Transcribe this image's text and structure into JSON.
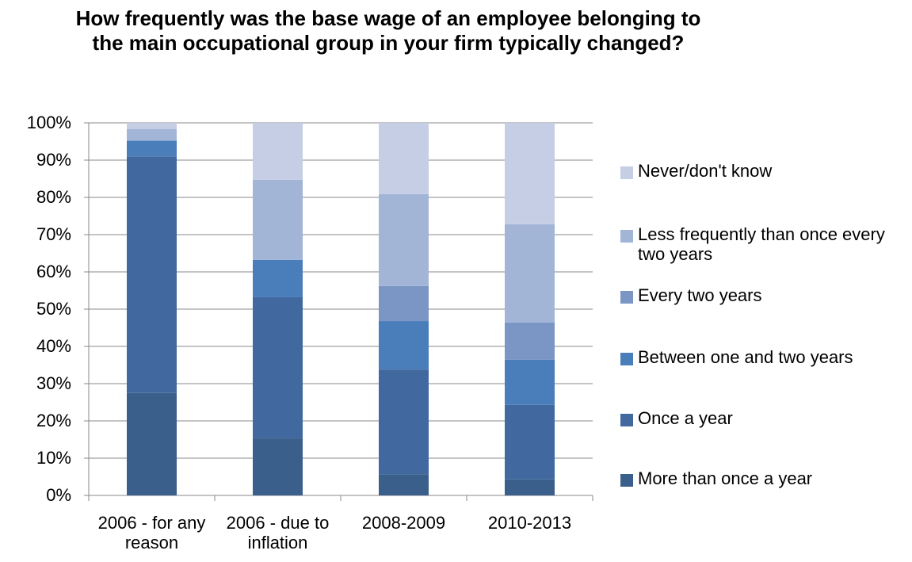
{
  "chart_data": {
    "type": "stacked_bar",
    "title": "How frequently was the base wage of an employee belonging to the main occupational group in your firm typically changed?",
    "categories": [
      "2006 - for any reason",
      "2006 - due to inflation",
      "2008-2009",
      "2010-2013"
    ],
    "series": [
      {
        "name": "More than once a year",
        "color": "#3a5f8b",
        "values": [
          27.5,
          15.3,
          5.7,
          4.3
        ]
      },
      {
        "name": "Once a year",
        "color": "#41699f",
        "values": [
          63.5,
          37.9,
          28.1,
          20.0
        ]
      },
      {
        "name": "Between one and two years",
        "color": "#4a7ebb",
        "values": [
          4.2,
          10.0,
          13.0,
          12.1
        ]
      },
      {
        "name": "Every two years",
        "color": "#7b96c5",
        "values": [
          0,
          0,
          9.4,
          10.0
        ]
      },
      {
        "name": "Less frequently than once every two years",
        "color": "#a3b5d7",
        "values": [
          3.1,
          21.5,
          24.7,
          26.4
        ]
      },
      {
        "name": "Never/don't know",
        "color": "#c5cee4",
        "values": [
          1.7,
          15.3,
          19.1,
          27.2
        ]
      }
    ],
    "ylim": [
      0,
      100
    ],
    "yticks": [
      {
        "value": 0,
        "label": "0%"
      },
      {
        "value": 10,
        "label": "10%"
      },
      {
        "value": 20,
        "label": "20%"
      },
      {
        "value": 30,
        "label": "30%"
      },
      {
        "value": 40,
        "label": "40%"
      },
      {
        "value": 50,
        "label": "50%"
      },
      {
        "value": 60,
        "label": "60%"
      },
      {
        "value": 70,
        "label": "70%"
      },
      {
        "value": 80,
        "label": "80%"
      },
      {
        "value": 90,
        "label": "90%"
      },
      {
        "value": 100,
        "label": "100%"
      }
    ],
    "grid": true,
    "legend": "right"
  }
}
